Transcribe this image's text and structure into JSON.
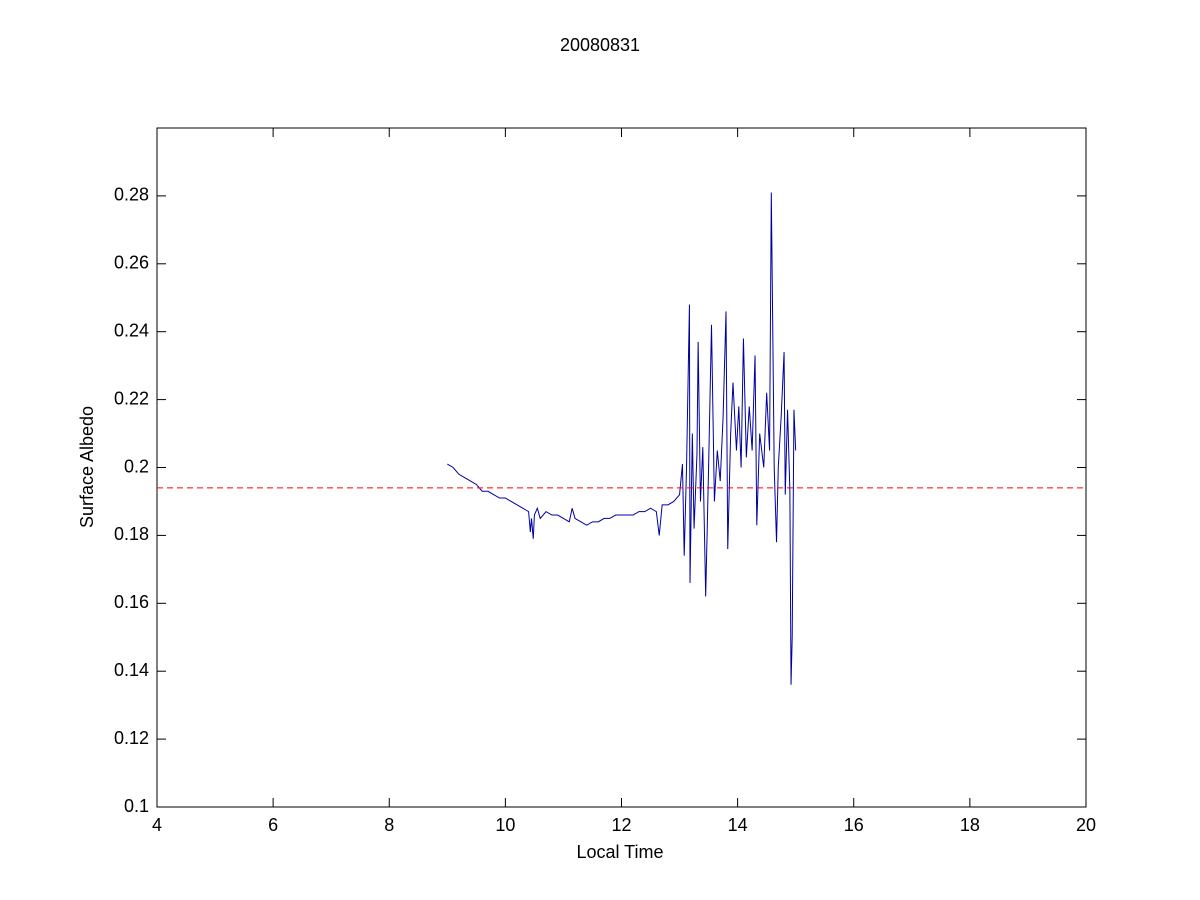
{
  "chart_data": {
    "type": "line",
    "title": "20080831",
    "xlabel": "Local Time",
    "ylabel": "Surface Albedo",
    "xlim": [
      4,
      20
    ],
    "xticks": [
      4,
      6,
      8,
      10,
      12,
      14,
      16,
      18,
      20
    ],
    "ylim": [
      0.1,
      0.3
    ],
    "yticks": [
      0.1,
      0.12,
      0.14,
      0.16,
      0.18,
      0.2,
      0.22,
      0.24,
      0.26,
      0.28
    ],
    "reference_line": {
      "value": 0.194,
      "color": "#ff0000",
      "style": "dashed"
    },
    "series": [
      {
        "color": "#0000a0",
        "x": [
          9.0,
          9.1,
          9.2,
          9.3,
          9.4,
          9.5,
          9.6,
          9.7,
          9.8,
          9.9,
          10.0,
          10.1,
          10.2,
          10.3,
          10.4,
          10.43,
          10.45,
          10.48,
          10.5,
          10.55,
          10.6,
          10.7,
          10.8,
          10.9,
          11.0,
          11.1,
          11.15,
          11.2,
          11.3,
          11.4,
          11.5,
          11.6,
          11.7,
          11.8,
          11.9,
          12.0,
          12.1,
          12.2,
          12.3,
          12.4,
          12.5,
          12.6,
          12.65,
          12.7,
          12.8,
          12.9,
          13.0,
          13.05,
          13.08,
          13.12,
          13.17,
          13.18,
          13.22,
          13.25,
          13.3,
          13.32,
          13.36,
          13.4,
          13.45,
          13.5,
          13.55,
          13.6,
          13.65,
          13.7,
          13.75,
          13.8,
          13.83,
          13.88,
          13.92,
          13.98,
          14.02,
          14.06,
          14.1,
          14.15,
          14.2,
          14.25,
          14.3,
          14.33,
          14.38,
          14.45,
          14.5,
          14.55,
          14.58,
          14.6,
          14.63,
          14.67,
          14.7,
          14.75,
          14.8,
          14.82,
          14.86,
          14.9,
          14.92,
          14.94,
          14.97,
          15.0
        ],
        "values": [
          0.201,
          0.2,
          0.198,
          0.197,
          0.196,
          0.195,
          0.193,
          0.193,
          0.192,
          0.191,
          0.191,
          0.19,
          0.189,
          0.188,
          0.187,
          0.181,
          0.185,
          0.179,
          0.186,
          0.188,
          0.185,
          0.187,
          0.186,
          0.186,
          0.185,
          0.184,
          0.188,
          0.185,
          0.184,
          0.183,
          0.184,
          0.184,
          0.185,
          0.185,
          0.186,
          0.186,
          0.186,
          0.186,
          0.187,
          0.187,
          0.188,
          0.187,
          0.18,
          0.189,
          0.189,
          0.19,
          0.192,
          0.201,
          0.174,
          0.2,
          0.248,
          0.166,
          0.21,
          0.182,
          0.204,
          0.237,
          0.19,
          0.206,
          0.162,
          0.2,
          0.242,
          0.19,
          0.205,
          0.196,
          0.215,
          0.246,
          0.176,
          0.21,
          0.225,
          0.205,
          0.218,
          0.2,
          0.238,
          0.203,
          0.218,
          0.205,
          0.233,
          0.183,
          0.21,
          0.2,
          0.222,
          0.205,
          0.281,
          0.249,
          0.2,
          0.178,
          0.2,
          0.215,
          0.234,
          0.192,
          0.217,
          0.193,
          0.136,
          0.15,
          0.217,
          0.205
        ]
      }
    ]
  }
}
